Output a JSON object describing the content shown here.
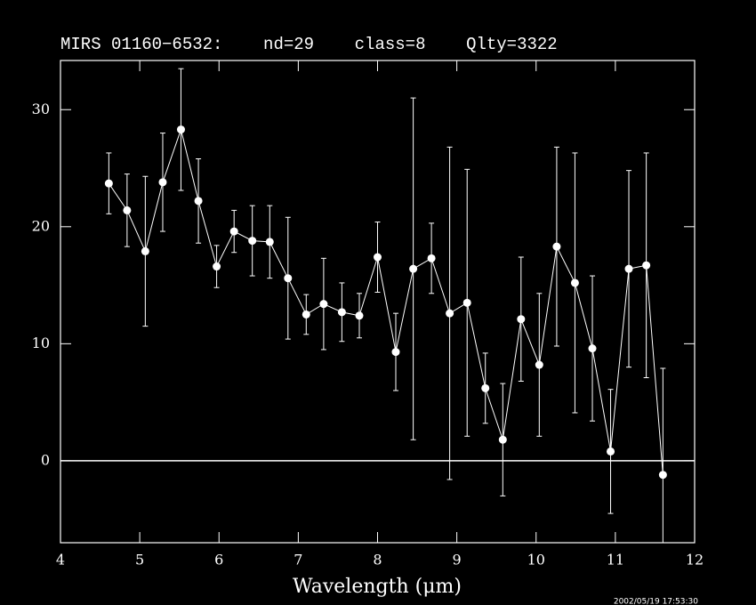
{
  "chart_data": {
    "type": "errorbar",
    "title": "MIRS 01160−6532:    nd=29    class=8    Qlty=3322",
    "x_label": "Wavelength (μm)",
    "timestamp": "2002/05/19 17:53:30",
    "xlim": [
      4,
      12
    ],
    "xticks": [
      4,
      5,
      6,
      7,
      8,
      9,
      10,
      11,
      12
    ],
    "ylim": [
      -7,
      34.2
    ],
    "yticks": [
      0,
      10,
      20,
      30
    ],
    "zero_line": 0,
    "color": "#ffffff",
    "series": [
      {
        "x": [
          4.61,
          4.84,
          5.07,
          5.29,
          5.52,
          5.74,
          5.97,
          6.19,
          6.42,
          6.64,
          6.87,
          7.1,
          7.32,
          7.55,
          7.77,
          8.0,
          8.23,
          8.45,
          8.68,
          8.91,
          9.13,
          9.36,
          9.58,
          9.81,
          10.04,
          10.26,
          10.49,
          10.71,
          10.94,
          11.17,
          11.39,
          11.6
        ],
        "values": [
          23.7,
          21.4,
          17.9,
          23.8,
          28.3,
          22.2,
          16.6,
          19.6,
          18.8,
          18.7,
          15.6,
          12.5,
          13.4,
          12.7,
          12.4,
          17.4,
          9.3,
          16.4,
          17.3,
          12.6,
          13.5,
          6.2,
          1.8,
          12.1,
          8.2,
          18.3,
          15.2,
          9.6,
          0.8,
          16.4,
          16.7,
          -1.2
        ],
        "errors": [
          2.6,
          3.1,
          6.4,
          4.2,
          5.2,
          3.6,
          1.8,
          1.8,
          3.0,
          3.1,
          5.2,
          1.7,
          3.9,
          2.5,
          1.9,
          3.0,
          3.3,
          14.6,
          3.0,
          14.2,
          11.4,
          3.0,
          4.8,
          5.3,
          6.1,
          8.5,
          11.1,
          6.2,
          5.3,
          8.4,
          9.6,
          9.1
        ]
      }
    ]
  }
}
